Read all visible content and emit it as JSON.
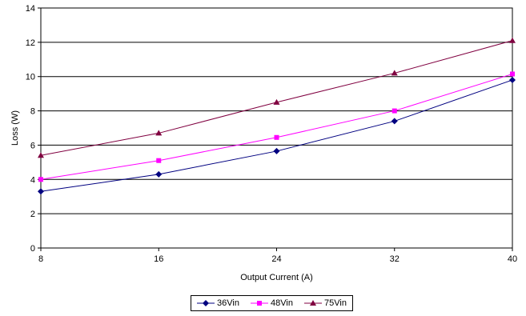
{
  "chart_data": {
    "type": "line",
    "xlabel": "Output Current (A)",
    "ylabel": "Loss (W)",
    "x": [
      8,
      16,
      24,
      32,
      40
    ],
    "xlim": [
      8,
      40
    ],
    "ylim": [
      0,
      14
    ],
    "yticks": [
      0,
      2,
      4,
      6,
      8,
      10,
      12,
      14
    ],
    "grid": "horizontal",
    "legend_position": "bottom",
    "series": [
      {
        "name": "36Vin",
        "values": [
          3.3,
          4.3,
          5.65,
          7.4,
          9.8
        ],
        "color": "#000080",
        "marker": "diamond"
      },
      {
        "name": "48Vin",
        "values": [
          4.0,
          5.1,
          6.45,
          8.0,
          10.15
        ],
        "color": "#ff00ff",
        "marker": "square"
      },
      {
        "name": "75Vin",
        "values": [
          5.4,
          6.7,
          8.5,
          10.2,
          12.1
        ],
        "color": "#800040",
        "marker": "triangle"
      }
    ]
  }
}
